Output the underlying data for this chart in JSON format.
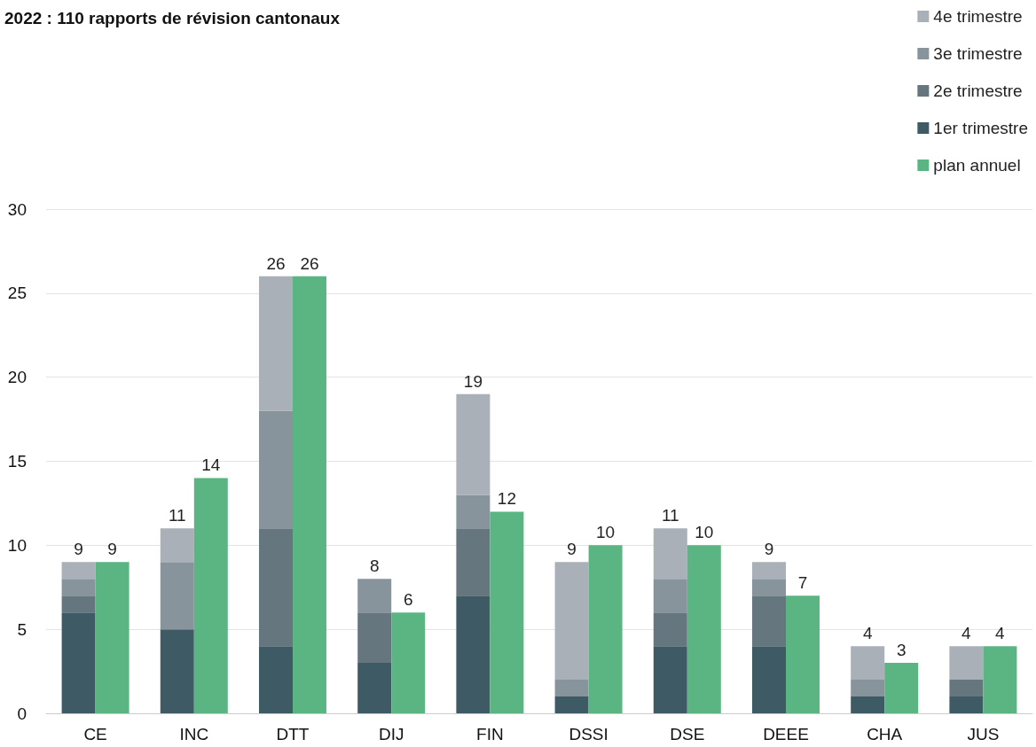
{
  "chart_data": {
    "type": "bar",
    "title": "2022 : 110 rapports de révision cantonaux",
    "categories": [
      "CE",
      "INC",
      "DTT",
      "DIJ",
      "FIN",
      "DSSI",
      "DSE",
      "DEEE",
      "CHA",
      "JUS"
    ],
    "series": [
      {
        "name": "1er trimestre",
        "color": "#3d5a65",
        "values": [
          6,
          5,
          4,
          3,
          7,
          1,
          4,
          4,
          1,
          1
        ],
        "base": [
          0,
          0,
          0,
          0,
          0,
          0,
          0,
          0,
          0,
          0
        ]
      },
      {
        "name": "2e trimestre",
        "color": "#66767e",
        "values": [
          1,
          null,
          7,
          3,
          4,
          null,
          2,
          3,
          null,
          1
        ],
        "base": [
          6,
          null,
          4,
          3,
          7,
          null,
          4,
          4,
          null,
          1
        ]
      },
      {
        "name": "3e trimestre",
        "color": "#87949c",
        "values": [
          1,
          4,
          7,
          2,
          2,
          1,
          2,
          1,
          1,
          null
        ],
        "base": [
          7,
          5,
          11,
          6,
          11,
          1,
          6,
          7,
          1,
          null
        ]
      },
      {
        "name": "4e trimestre",
        "color": "#a9b0b8",
        "values": [
          1,
          2,
          8,
          null,
          6,
          7,
          3,
          1,
          2,
          2
        ],
        "base": [
          8,
          9,
          18,
          null,
          13,
          2,
          8,
          8,
          2,
          2
        ]
      },
      {
        "name": "plan annuel",
        "color": "#5bb583",
        "values": [
          9,
          14,
          26,
          6,
          12,
          10,
          10,
          7,
          3,
          4
        ],
        "value_labels": [
          "9",
          "14",
          "26",
          "6",
          "12",
          "10",
          "10",
          "7",
          "3",
          "4"
        ]
      }
    ],
    "annotations": [
      {
        "text": "9",
        "x": "CE",
        "y": 9
      },
      {
        "text": "11",
        "x": "INC",
        "y": 11
      },
      {
        "text": "26",
        "x": "DTT",
        "y": 26
      },
      {
        "text": "8",
        "x": "DIJ",
        "y": 8
      },
      {
        "text": "19",
        "x": "FIN",
        "y": 19
      },
      {
        "text": "9",
        "x": "DSSI",
        "y": 9
      },
      {
        "text": "11",
        "x": "DSE",
        "y": 11
      },
      {
        "text": "9",
        "x": "DEEE",
        "y": 9
      },
      {
        "text": "4",
        "x": "CHA",
        "y": 4
      },
      {
        "text": "4",
        "x": "JUS",
        "y": 4
      }
    ],
    "ylim": [
      0,
      30
    ],
    "yticks": [
      0,
      5,
      10,
      15,
      20,
      25,
      30
    ],
    "grid": "y",
    "legend": "top right"
  }
}
